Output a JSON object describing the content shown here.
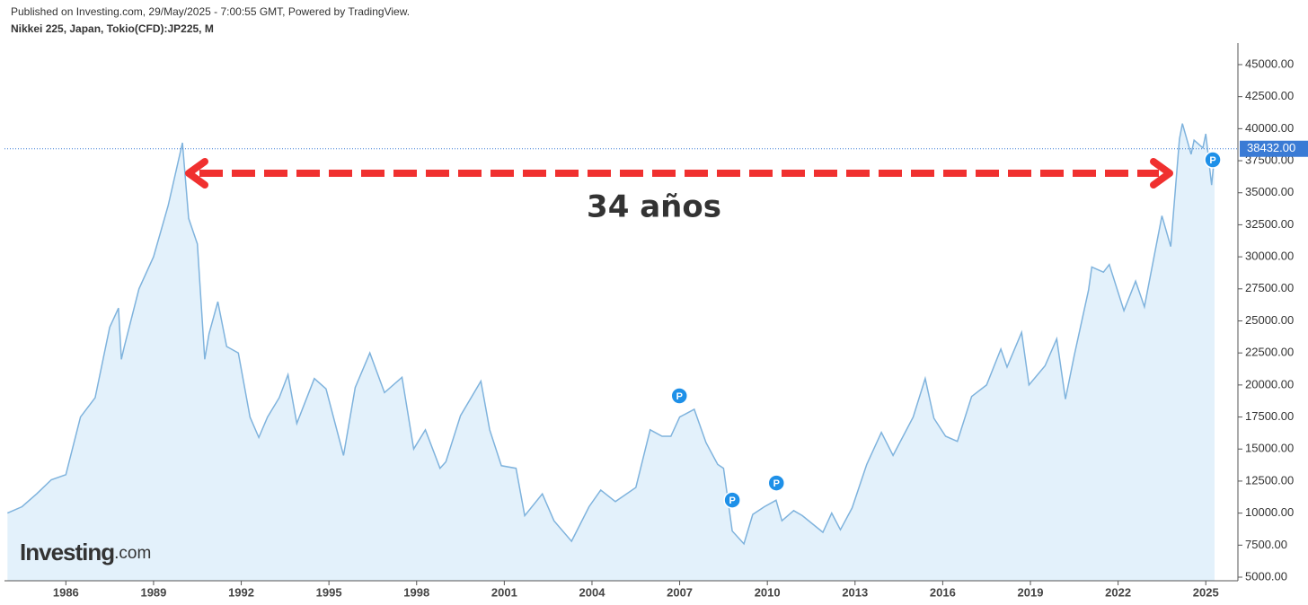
{
  "header": {
    "published": "Published on Investing.com, 29/May/2025 - 7:00:55 GMT, Powered by TradingView.",
    "symbol": "Nikkei 225, Japan, Tokio(CFD):JP225, M"
  },
  "logo": {
    "name": "Investing",
    "suffix": ".com"
  },
  "chart_data": {
    "type": "area",
    "color": "#7fb3dd",
    "fill": "#e3f1fb",
    "annotation": "34 años",
    "last_value": 38432,
    "last_value_label": "38432.00",
    "last_value_color": "#3a7bd5",
    "x": [
      1984.0,
      1984.5,
      1985.0,
      1985.5,
      1986.0,
      1986.5,
      1987.0,
      1987.5,
      1987.8,
      1987.9,
      1988.0,
      1988.5,
      1989.0,
      1989.5,
      1989.99,
      1990.2,
      1990.5,
      1990.75,
      1990.9,
      1991.2,
      1991.5,
      1991.9,
      1992.3,
      1992.6,
      1992.9,
      1993.3,
      1993.6,
      1993.9,
      1994.5,
      1994.9,
      1995.5,
      1995.9,
      1996.4,
      1996.9,
      1997.5,
      1997.9,
      1998.3,
      1998.8,
      1999.0,
      1999.5,
      2000.2,
      2000.5,
      2000.9,
      2001.4,
      2001.7,
      2002.3,
      2002.7,
      2003.3,
      2003.9,
      2004.3,
      2004.8,
      2005.5,
      2005.99,
      2006.4,
      2006.7,
      2007.0,
      2007.5,
      2007.9,
      2008.3,
      2008.5,
      2008.8,
      2009.2,
      2009.5,
      2009.9,
      2010.3,
      2010.5,
      2010.9,
      2011.2,
      2011.9,
      2012.2,
      2012.5,
      2012.9,
      2013.4,
      2013.9,
      2014.3,
      2014.99,
      2015.4,
      2015.7,
      2016.1,
      2016.5,
      2016.99,
      2017.5,
      2017.99,
      2018.2,
      2018.7,
      2018.95,
      2019.5,
      2019.9,
      2020.2,
      2020.5,
      2020.99,
      2021.1,
      2021.5,
      2021.7,
      2022.2,
      2022.6,
      2022.9,
      2023.5,
      2023.8,
      2024.1,
      2024.2,
      2024.5,
      2024.6,
      2024.9,
      2025.0,
      2025.2,
      2025.3
    ],
    "values": [
      10000,
      10500,
      11500,
      12600,
      13000,
      17500,
      19000,
      24500,
      26000,
      22000,
      23000,
      27500,
      30000,
      34000,
      38900,
      33000,
      31000,
      22000,
      24000,
      26500,
      23000,
      22500,
      17500,
      15900,
      17500,
      19000,
      20800,
      17000,
      20500,
      19700,
      14500,
      19800,
      22500,
      19400,
      20600,
      15000,
      16500,
      13500,
      14000,
      17600,
      20300,
      16500,
      13700,
      13500,
      9800,
      11500,
      9400,
      7800,
      10500,
      11800,
      10900,
      12000,
      16500,
      16000,
      16000,
      17500,
      18100,
      15500,
      13800,
      13500,
      8600,
      7600,
      9900,
      10500,
      11000,
      9400,
      10200,
      9800,
      8500,
      10000,
      8700,
      10400,
      13800,
      16300,
      14500,
      17500,
      20500,
      17400,
      16000,
      15600,
      19100,
      20000,
      22800,
      21400,
      24100,
      20000,
      21500,
      23600,
      18900,
      22300,
      27400,
      29200,
      28800,
      29400,
      25800,
      28100,
      26100,
      33200,
      30800,
      39200,
      40400,
      38000,
      39100,
      38500,
      39600,
      35600,
      38000
    ],
    "markers": [
      {
        "x": 2006.99,
        "y": 19150,
        "label": "P"
      },
      {
        "x": 2008.8,
        "y": 11020,
        "label": "P"
      },
      {
        "x": 2010.31,
        "y": 12350,
        "label": "P"
      },
      {
        "x": 2025.24,
        "y": 37570,
        "label": "P"
      }
    ],
    "xlim": [
      1983.9,
      2026.1
    ],
    "xticks": [
      1986,
      1989,
      1992,
      1995,
      1998,
      2001,
      2004,
      2007,
      2010,
      2013,
      2016,
      2019,
      2022,
      2025
    ],
    "ylim": [
      4720,
      46680
    ],
    "yticks": [
      {
        "value": 5000,
        "label": "5000.00"
      },
      {
        "value": 7500,
        "label": "7500.00"
      },
      {
        "value": 10000,
        "label": "10000.00"
      },
      {
        "value": 12500,
        "label": "12500.00"
      },
      {
        "value": 15000,
        "label": "15000.00"
      },
      {
        "value": 17500,
        "label": "17500.00"
      },
      {
        "value": 20000,
        "label": "20000.00"
      },
      {
        "value": 22500,
        "label": "22500.00"
      },
      {
        "value": 25000,
        "label": "25000.00"
      },
      {
        "value": 27500,
        "label": "27500.00"
      },
      {
        "value": 30000,
        "label": "30000.00"
      },
      {
        "value": 32500,
        "label": "32500.00"
      },
      {
        "value": 35000,
        "label": "35000.00"
      },
      {
        "value": 37500,
        "label": "37500.00"
      },
      {
        "value": 40000,
        "label": "40000.00"
      },
      {
        "value": 42500,
        "label": "42500.00"
      },
      {
        "value": 45000,
        "label": "45000.00"
      }
    ]
  }
}
